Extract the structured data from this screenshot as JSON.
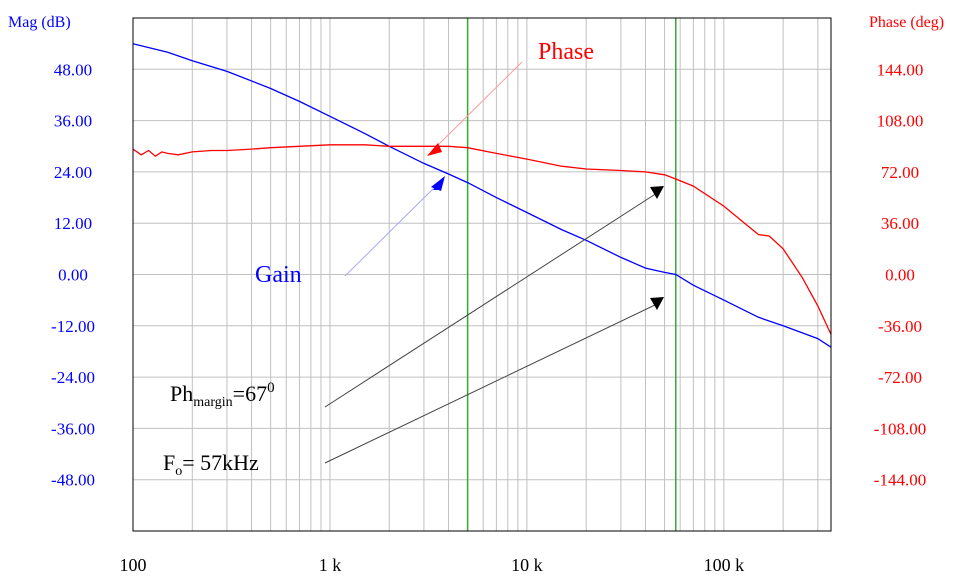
{
  "chart_data": {
    "type": "line",
    "x_scale": "log",
    "xlim": [
      100,
      350000
    ],
    "x_tick_labels": [
      "100",
      "1 k",
      "10 k",
      "100 k"
    ],
    "left_axis": {
      "title": "Mag (dB)",
      "range": [
        -60,
        60
      ],
      "tick_labels": [
        "48.00",
        "36.00",
        "24.00",
        "12.00",
        "0.00",
        "-12.00",
        "-24.00",
        "-36.00",
        "-48.00"
      ],
      "color": "#0000ff"
    },
    "right_axis": {
      "title": "Phase (deg)",
      "range": [
        -180,
        180
      ],
      "tick_labels": [
        "144.00",
        "108.00",
        "72.00",
        "36.00",
        "0.00",
        "-36.00",
        "-72.00",
        "-108.00",
        "-144.00"
      ],
      "color": "#ff0000"
    },
    "grid": true,
    "series": [
      {
        "name": "Gain",
        "axis": "left",
        "color": "#0000ff",
        "x": [
          100,
          150,
          200,
          300,
          500,
          700,
          1000,
          1500,
          2000,
          3000,
          4000,
          5000,
          7000,
          10000,
          15000,
          20000,
          30000,
          40000,
          50000,
          57000,
          70000,
          100000,
          150000,
          200000,
          300000,
          350000
        ],
        "y": [
          54,
          52,
          50,
          47.5,
          43.5,
          40.5,
          37,
          33,
          30,
          26,
          23.5,
          21.5,
          18,
          14.5,
          10.5,
          8,
          4,
          1.5,
          0.5,
          0,
          -2.5,
          -6,
          -10,
          -12,
          -15,
          -17
        ]
      },
      {
        "name": "Phase",
        "axis": "right",
        "color": "#ff0000",
        "x": [
          100,
          110,
          120,
          130,
          140,
          150,
          170,
          200,
          250,
          300,
          400,
          500,
          700,
          1000,
          1500,
          2000,
          3000,
          4000,
          5000,
          7000,
          10000,
          15000,
          20000,
          30000,
          40000,
          50000,
          57000,
          70000,
          100000,
          130000,
          150000,
          170000,
          200000,
          250000,
          300000,
          350000
        ],
        "y": [
          88,
          84,
          87,
          83,
          86,
          85,
          84,
          86,
          87,
          87,
          88,
          89,
          90,
          91,
          91,
          90,
          90,
          90,
          89,
          85,
          81,
          76,
          74,
          73,
          72,
          70,
          67,
          62,
          48,
          35,
          28,
          27,
          18,
          -2,
          -22,
          -42
        ]
      }
    ],
    "vertical_markers": [
      5000,
      57000
    ],
    "annotations": {
      "phase_label": "Phase",
      "gain_label": "Gain",
      "ph_margin_main": "Ph",
      "ph_margin_sub": "margin",
      "ph_margin_eq": "=67",
      "ph_margin_sup": "0",
      "fo_main": "F",
      "fo_sub": "o",
      "fo_rest": "= 57kHz"
    },
    "colors": {
      "gain": "#0000ff",
      "phase": "#ff0000",
      "marker": "#33aa33",
      "grid": "#c0c0c0",
      "frame": "#000000"
    }
  }
}
